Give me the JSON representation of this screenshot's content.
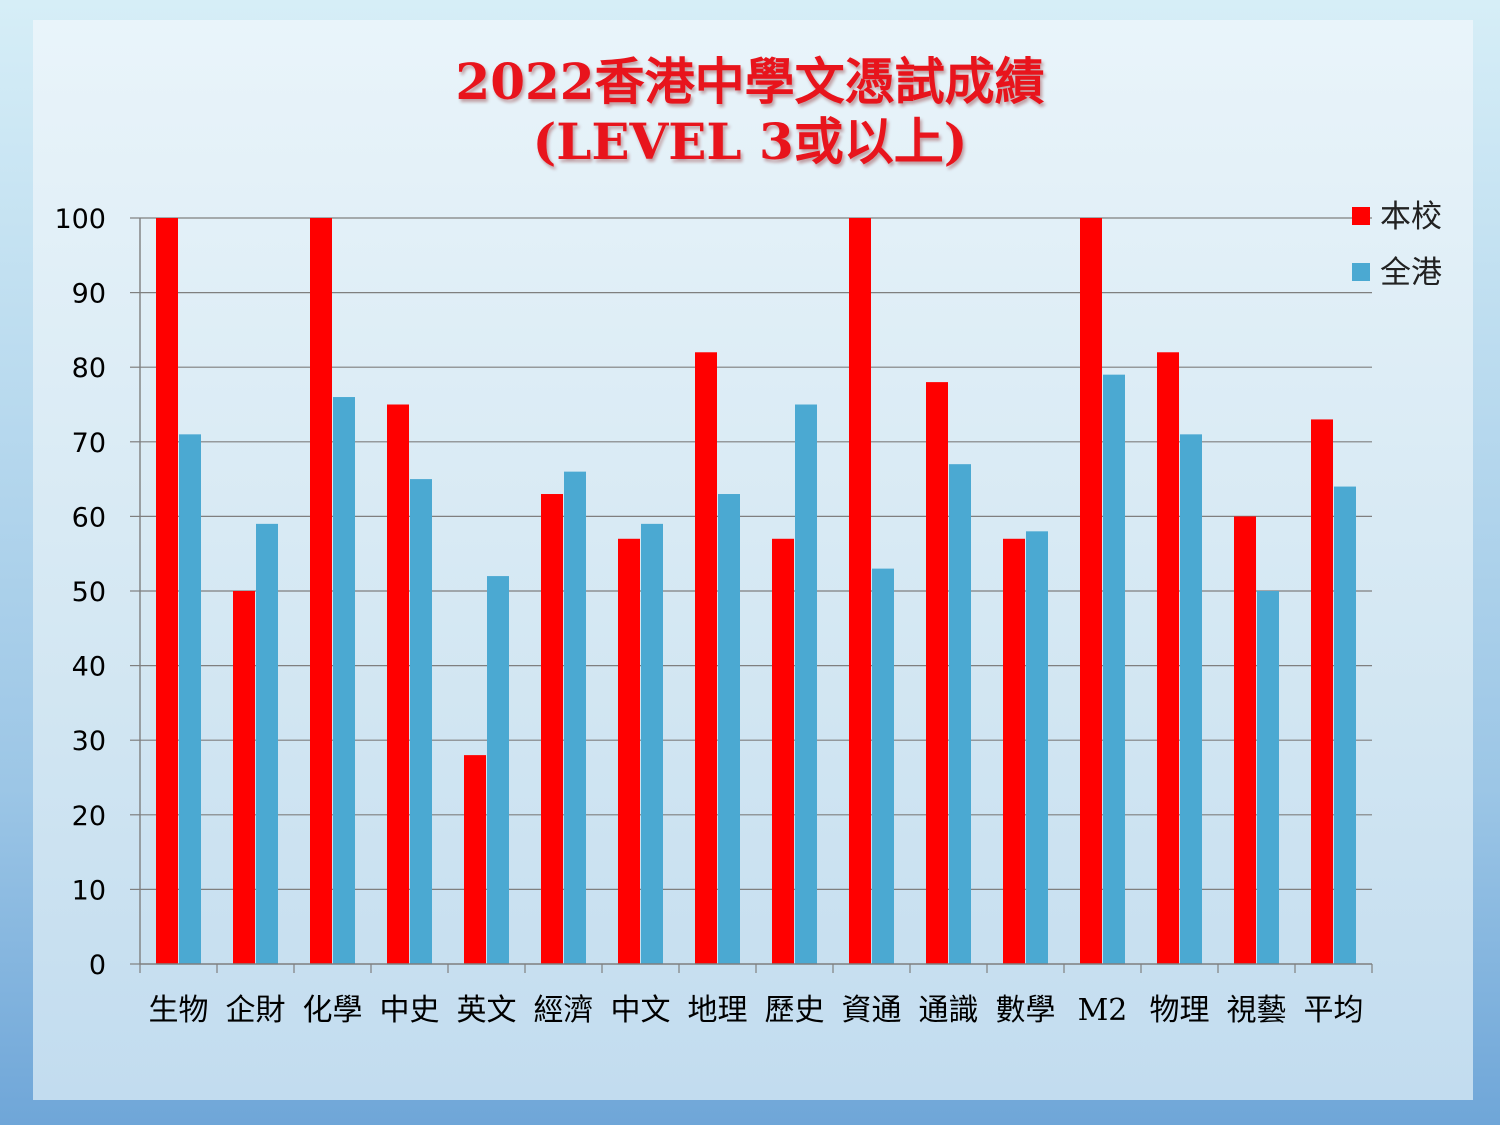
{
  "title": {
    "line1": "2022香港中學文憑試成績",
    "line2": "(LEVEL 3或以上)"
  },
  "colors": {
    "school": "#ff0000",
    "hk": "#4ba9d2",
    "grid": "#7f7f7f"
  },
  "chart_data": {
    "type": "bar",
    "categories": [
      "生物",
      "企財",
      "化學",
      "中史",
      "英文",
      "經濟",
      "中文",
      "地理",
      "歷史",
      "資通",
      "通識",
      "數學",
      "M2",
      "物理",
      "視藝",
      "平均"
    ],
    "series": [
      {
        "name": "本校",
        "values": [
          100,
          50,
          100,
          75,
          28,
          63,
          57,
          82,
          57,
          100,
          78,
          57,
          100,
          82,
          60,
          73
        ]
      },
      {
        "name": "全港",
        "values": [
          71,
          59,
          76,
          65,
          52,
          66,
          59,
          63,
          75,
          53,
          67,
          58,
          79,
          71,
          50,
          64
        ]
      }
    ],
    "ylim": [
      0,
      100
    ],
    "yticks": [
      "0",
      "10",
      "20",
      "30",
      "40",
      "50",
      "60",
      "70",
      "80",
      "90",
      "100"
    ],
    "grid": true,
    "legend": "top-right"
  }
}
